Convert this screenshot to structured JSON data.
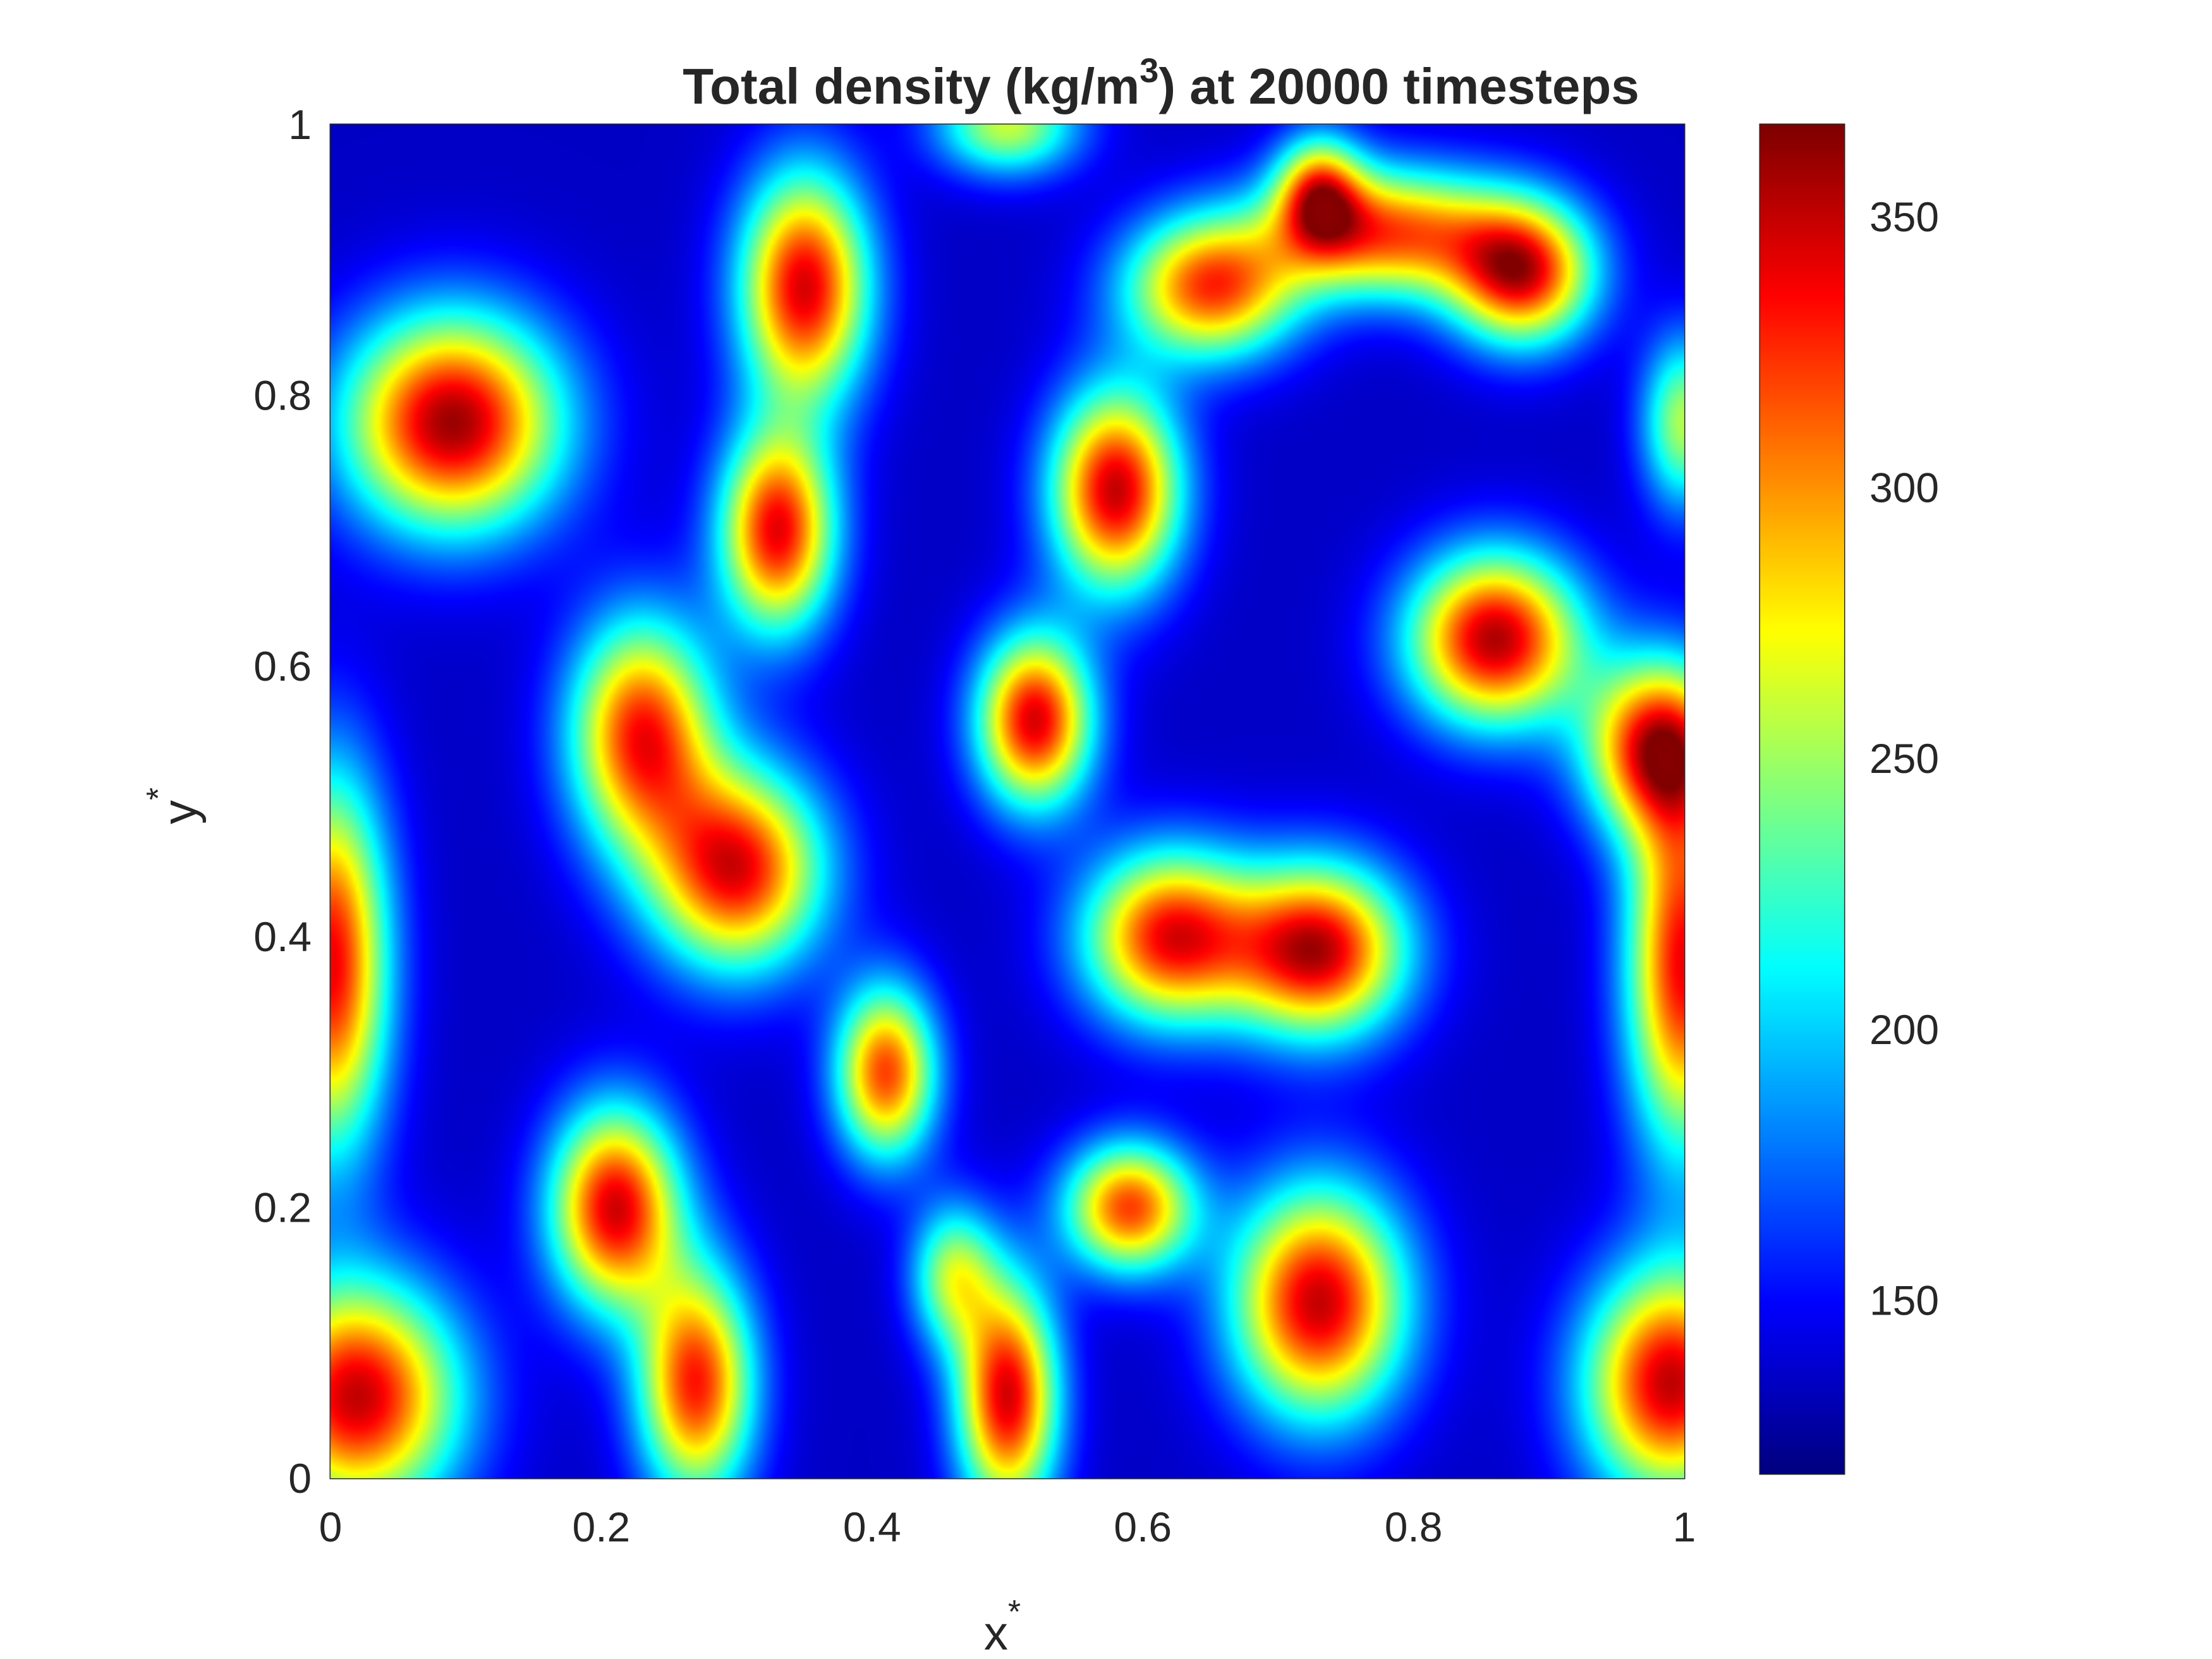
{
  "chart_data": {
    "type": "heatmap",
    "title": {
      "main": "Total density (kg/m",
      "superscript": "3",
      "rest": ") at 20000 timesteps"
    },
    "xlabel": {
      "base": "x",
      "superscript": "*"
    },
    "ylabel": {
      "base": "y",
      "superscript": "*"
    },
    "xlim": [
      0,
      1
    ],
    "ylim": [
      0,
      1
    ],
    "xticks": [
      {
        "value": 0,
        "label": "0"
      },
      {
        "value": 0.2,
        "label": "0.2"
      },
      {
        "value": 0.4,
        "label": "0.4"
      },
      {
        "value": 0.6,
        "label": "0.6"
      },
      {
        "value": 0.8,
        "label": "0.8"
      },
      {
        "value": 1,
        "label": "1"
      }
    ],
    "yticks": [
      {
        "value": 0,
        "label": "0"
      },
      {
        "value": 0.2,
        "label": "0.2"
      },
      {
        "value": 0.4,
        "label": "0.4"
      },
      {
        "value": 0.6,
        "label": "0.6"
      },
      {
        "value": 0.8,
        "label": "0.8"
      },
      {
        "value": 1,
        "label": "1"
      }
    ],
    "colormap": "jet",
    "clim": [
      118,
      367
    ],
    "colorbar_ticks": [
      {
        "value": 150,
        "label": "150"
      },
      {
        "value": 200,
        "label": "200"
      },
      {
        "value": 250,
        "label": "250"
      },
      {
        "value": 300,
        "label": "300"
      },
      {
        "value": 350,
        "label": "350"
      }
    ],
    "background_value": 135,
    "blobs": [
      {
        "x": 0.09,
        "y": 0.78,
        "rx": 0.075,
        "ry": 0.075,
        "peak": 360
      },
      {
        "x": 0.02,
        "y": 0.06,
        "rx": 0.07,
        "ry": 0.08,
        "peak": 350
      },
      {
        "x": 0.0,
        "y": 0.38,
        "rx": 0.04,
        "ry": 0.13,
        "peak": 340
      },
      {
        "x": 1.0,
        "y": 0.38,
        "rx": 0.04,
        "ry": 0.13,
        "peak": 340
      },
      {
        "x": 0.99,
        "y": 0.07,
        "rx": 0.06,
        "ry": 0.08,
        "peak": 350
      },
      {
        "x": 0.21,
        "y": 0.2,
        "rx": 0.045,
        "ry": 0.07,
        "peak": 345
      },
      {
        "x": 0.27,
        "y": 0.07,
        "rx": 0.04,
        "ry": 0.08,
        "peak": 330
      },
      {
        "x": 0.5,
        "y": 0.06,
        "rx": 0.035,
        "ry": 0.08,
        "peak": 345
      },
      {
        "x": 0.73,
        "y": 0.13,
        "rx": 0.06,
        "ry": 0.08,
        "peak": 350
      },
      {
        "x": 0.59,
        "y": 0.2,
        "rx": 0.045,
        "ry": 0.045,
        "peak": 320
      },
      {
        "x": 0.41,
        "y": 0.3,
        "rx": 0.035,
        "ry": 0.06,
        "peak": 320
      },
      {
        "x": 0.23,
        "y": 0.55,
        "rx": 0.05,
        "ry": 0.08,
        "peak": 330
      },
      {
        "x": 0.3,
        "y": 0.45,
        "rx": 0.06,
        "ry": 0.07,
        "peak": 340
      },
      {
        "x": 0.33,
        "y": 0.7,
        "rx": 0.04,
        "ry": 0.07,
        "peak": 340
      },
      {
        "x": 0.35,
        "y": 0.88,
        "rx": 0.045,
        "ry": 0.08,
        "peak": 345
      },
      {
        "x": 0.52,
        "y": 0.56,
        "rx": 0.04,
        "ry": 0.06,
        "peak": 345
      },
      {
        "x": 0.58,
        "y": 0.73,
        "rx": 0.045,
        "ry": 0.07,
        "peak": 350
      },
      {
        "x": 0.65,
        "y": 0.88,
        "rx": 0.06,
        "ry": 0.05,
        "peak": 320
      },
      {
        "x": 0.78,
        "y": 0.92,
        "rx": 0.08,
        "ry": 0.045,
        "peak": 315
      },
      {
        "x": 0.88,
        "y": 0.89,
        "rx": 0.05,
        "ry": 0.05,
        "peak": 335
      },
      {
        "x": 0.62,
        "y": 0.4,
        "rx": 0.06,
        "ry": 0.06,
        "peak": 335
      },
      {
        "x": 0.73,
        "y": 0.39,
        "rx": 0.06,
        "ry": 0.06,
        "peak": 350
      },
      {
        "x": 0.86,
        "y": 0.62,
        "rx": 0.06,
        "ry": 0.06,
        "peak": 355
      },
      {
        "x": 0.98,
        "y": 0.54,
        "rx": 0.05,
        "ry": 0.06,
        "peak": 335
      },
      {
        "x": 0.5,
        "y": 1.0,
        "rx": 0.05,
        "ry": 0.035,
        "peak": 260
      },
      {
        "x": 1.0,
        "y": 0.78,
        "rx": 0.03,
        "ry": 0.06,
        "peak": 255
      },
      {
        "x": 0.46,
        "y": 0.15,
        "rx": 0.03,
        "ry": 0.05,
        "peak": 250
      },
      {
        "x": 0.73,
        "y": 0.95,
        "rx": 0.03,
        "ry": 0.04,
        "peak": 280
      }
    ]
  }
}
